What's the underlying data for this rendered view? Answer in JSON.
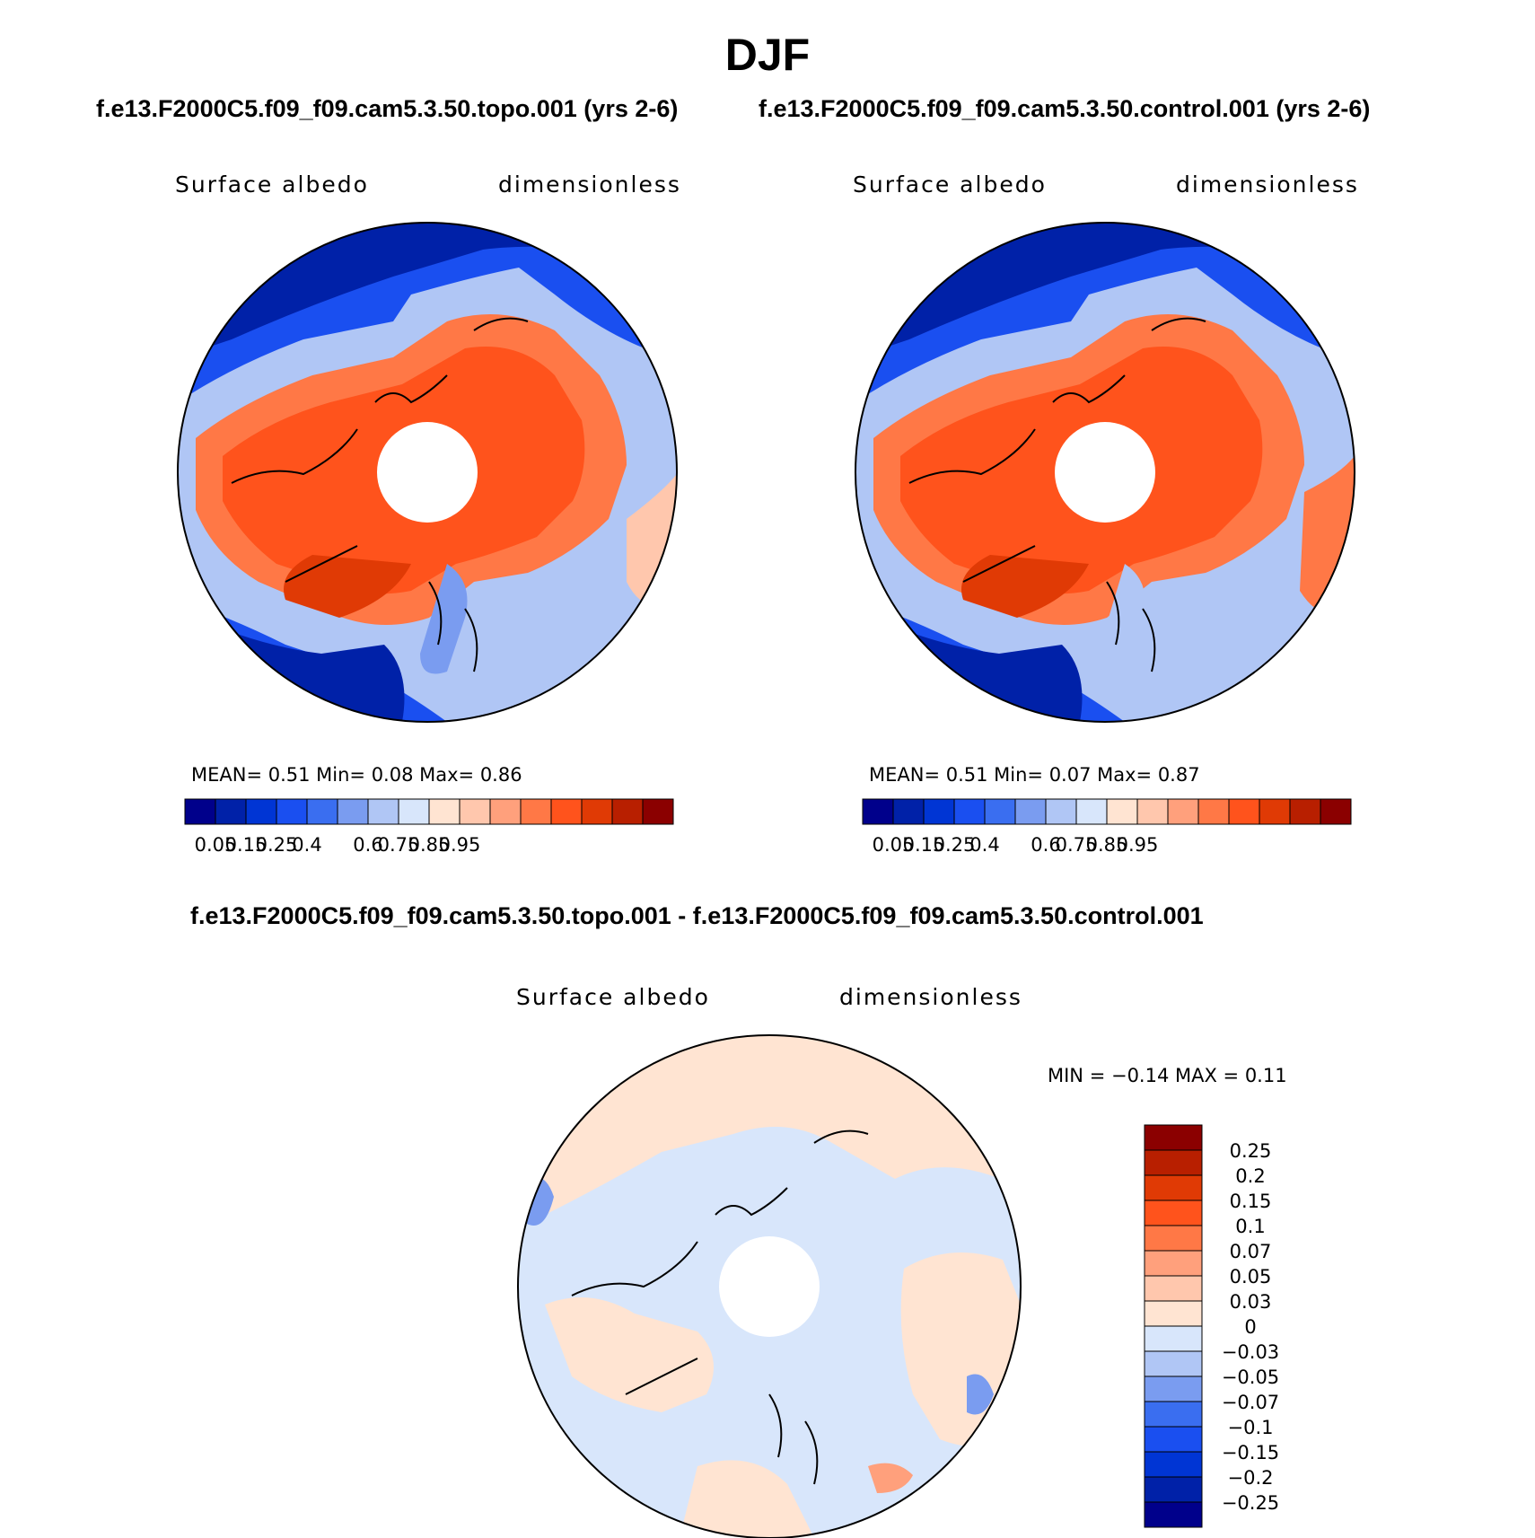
{
  "title": "DJF",
  "panels": {
    "topo": {
      "case": "f.e13.F2000C5.f09_f09.cam5.3.50.topo.001 (yrs 2-6)",
      "variable": "Surface albedo",
      "units": "dimensionless",
      "stats_line": "MEAN=    0.51   Min=     0.08   Max=     0.86",
      "colorbar_labels": [
        "0.05",
        "0.15",
        "0.25",
        "0.4",
        "0.6",
        "0.75",
        "0.85",
        "0.95"
      ]
    },
    "control": {
      "case": "f.e13.F2000C5.f09_f09.cam5.3.50.control.001 (yrs 2-6)",
      "variable": "Surface albedo",
      "units": "dimensionless",
      "stats_line": "MEAN=    0.51   Min=     0.07   Max=     0.87",
      "colorbar_labels": [
        "0.05",
        "0.15",
        "0.25",
        "0.4",
        "0.6",
        "0.75",
        "0.85",
        "0.95"
      ]
    },
    "diff": {
      "case": "f.e13.F2000C5.f09_f09.cam5.3.50.topo.001 - f.e13.F2000C5.f09_f09.cam5.3.50.control.001",
      "variable": "Surface albedo",
      "units": "dimensionless",
      "minmax_line": "MIN =   −0.14  MAX =     0.11",
      "colorbar_labels": [
        "0.25",
        "0.2",
        "0.15",
        "0.1",
        "0.07",
        "0.05",
        "0.03",
        "0",
        "−0.03",
        "−0.05",
        "−0.07",
        "−0.1",
        "−0.15",
        "−0.2",
        "−0.25"
      ]
    }
  },
  "colors": {
    "abs_scale": [
      "#00008b",
      "#0021a8",
      "#0035d4",
      "#1a4ff0",
      "#3a6ef0",
      "#7a9cf0",
      "#b0c6f5",
      "#d8e6fb",
      "#ffe4d2",
      "#ffc7ad",
      "#ffa07c",
      "#ff7846",
      "#ff531c",
      "#e03a05",
      "#b81f00",
      "#8b0000"
    ],
    "diff_scale": [
      "#8b0000",
      "#b81f00",
      "#e03a05",
      "#ff531c",
      "#ff7846",
      "#ffa07c",
      "#ffc7ad",
      "#ffe4d2",
      "#d8e6fb",
      "#b0c6f5",
      "#7a9cf0",
      "#3a6ef0",
      "#1a4ff0",
      "#0035d4",
      "#0021a8",
      "#00008b"
    ]
  }
}
